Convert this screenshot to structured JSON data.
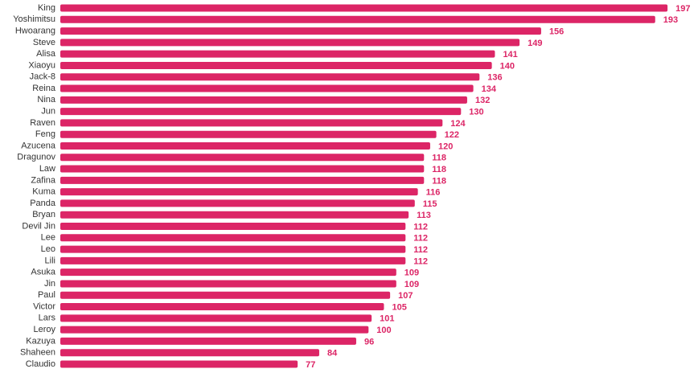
{
  "chart_data": {
    "type": "bar",
    "orientation": "horizontal",
    "color": "#dc2566",
    "categories": [
      "King",
      "Yoshimitsu",
      "Hwoarang",
      "Steve",
      "Alisa",
      "Xiaoyu",
      "Jack-8",
      "Reina",
      "Nina",
      "Jun",
      "Raven",
      "Feng",
      "Azucena",
      "Dragunov",
      "Law",
      "Zafina",
      "Kuma",
      "Panda",
      "Bryan",
      "Devil Jin",
      "Lee",
      "Leo",
      "Lili",
      "Asuka",
      "Jin",
      "Paul",
      "Victor",
      "Lars",
      "Leroy",
      "Kazuya",
      "Shaheen",
      "Claudio"
    ],
    "values": [
      197,
      193,
      156,
      149,
      141,
      140,
      136,
      134,
      132,
      130,
      124,
      122,
      120,
      118,
      118,
      118,
      116,
      115,
      113,
      112,
      112,
      112,
      112,
      109,
      109,
      107,
      105,
      101,
      100,
      96,
      84,
      77
    ]
  }
}
